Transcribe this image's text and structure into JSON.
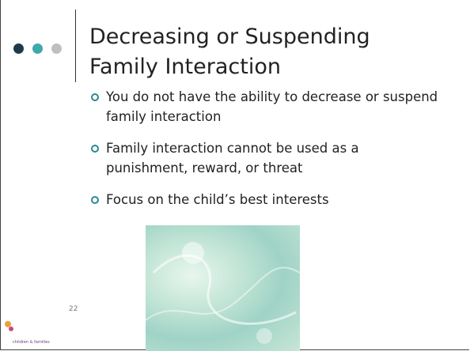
{
  "slide": {
    "title": "Decreasing or Suspending Family Interaction",
    "bullets": [
      "You do not have the ability to decrease or suspend family interaction",
      "Family interaction cannot be used as a punishment, reward, or threat",
      "Focus on the child’s best interests"
    ],
    "page_number": "22",
    "logo_text": "children & families"
  }
}
